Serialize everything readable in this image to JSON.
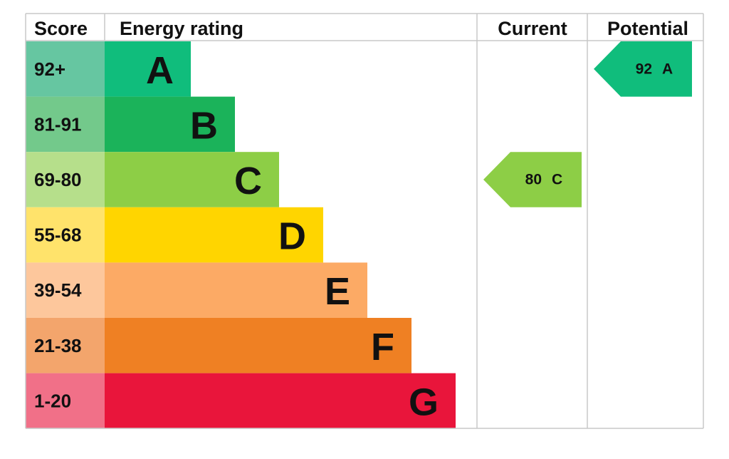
{
  "header": {
    "score": "Score",
    "rating": "Energy rating",
    "current": "Current",
    "potential": "Potential"
  },
  "rows": [
    {
      "score": "92+",
      "band": "A",
      "color": "#10bd7c",
      "score_color": "#66c6a1"
    },
    {
      "score": "81-91",
      "band": "B",
      "color": "#1bb35a",
      "score_color": "#73c98b"
    },
    {
      "score": "69-80",
      "band": "C",
      "color": "#8dce46",
      "score_color": "#b6df8b"
    },
    {
      "score": "55-68",
      "band": "D",
      "color": "#ffd500",
      "score_color": "#ffe36b"
    },
    {
      "score": "39-54",
      "band": "E",
      "color": "#fcaa65",
      "score_color": "#fdc79c"
    },
    {
      "score": "21-38",
      "band": "F",
      "color": "#ef8023",
      "score_color": "#f3a56c"
    },
    {
      "score": "1-20",
      "band": "G",
      "color": "#e9153b",
      "score_color": "#f17088"
    }
  ],
  "current": {
    "score": 80,
    "band": "C"
  },
  "potential": {
    "score": 92,
    "band": "A"
  }
}
